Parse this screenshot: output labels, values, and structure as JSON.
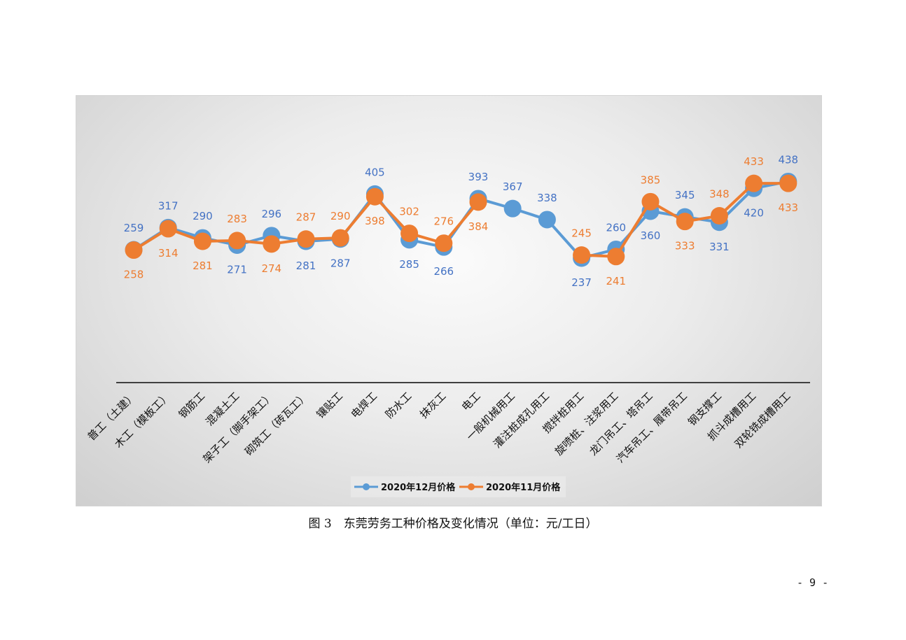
{
  "caption": "图 3　东莞劳务工种价格及变化情况（单位：元/工日）",
  "page_number": "- 9 -",
  "chart_data": {
    "type": "line",
    "categories": [
      "普工（土建）",
      "木工（模板工）",
      "钢筋工",
      "混凝土工",
      "架子工（脚手架工）",
      "砌筑工（砖瓦工）",
      "镶贴工",
      "电焊工",
      "防水工",
      "抹灰工",
      "电工",
      "一般机械用工",
      "灌注桩成孔用工",
      "搅拌桩用工",
      "旋喷桩、注浆用工",
      "龙门吊工、塔吊工",
      "汽车吊工、履带吊工",
      "钢支撑工",
      "抓斗成槽用工",
      "双轮铣成槽用工"
    ],
    "series": [
      {
        "name": "2020年12月价格",
        "color": "#5B9BD5",
        "label_color": "#4472C4",
        "values": [
          259,
          317,
          290,
          271,
          296,
          281,
          287,
          405,
          285,
          266,
          393,
          367,
          338,
          237,
          260,
          360,
          345,
          331,
          420,
          438
        ],
        "label_pos": [
          "above",
          "above",
          "above",
          "below",
          "above",
          "below",
          "below",
          "above",
          "below",
          "below",
          "above",
          "above",
          "above",
          "below",
          "above",
          "below",
          "above",
          "below",
          "below",
          "above"
        ]
      },
      {
        "name": "2020年11月价格",
        "color": "#ED7D31",
        "label_color": "#ED7D31",
        "values": [
          258,
          314,
          281,
          283,
          274,
          287,
          290,
          398,
          302,
          276,
          384,
          null,
          null,
          245,
          241,
          385,
          333,
          348,
          433,
          433
        ],
        "label_pos": [
          "below",
          "below",
          "below",
          "above",
          "below",
          "above",
          "above",
          "below",
          "above",
          "above",
          "below",
          null,
          null,
          "above",
          "below",
          "above",
          "below",
          "above",
          "above",
          "below"
        ]
      }
    ],
    "ylim": [
      0,
      460
    ],
    "legend_position": "bottom-center",
    "grid": false
  }
}
